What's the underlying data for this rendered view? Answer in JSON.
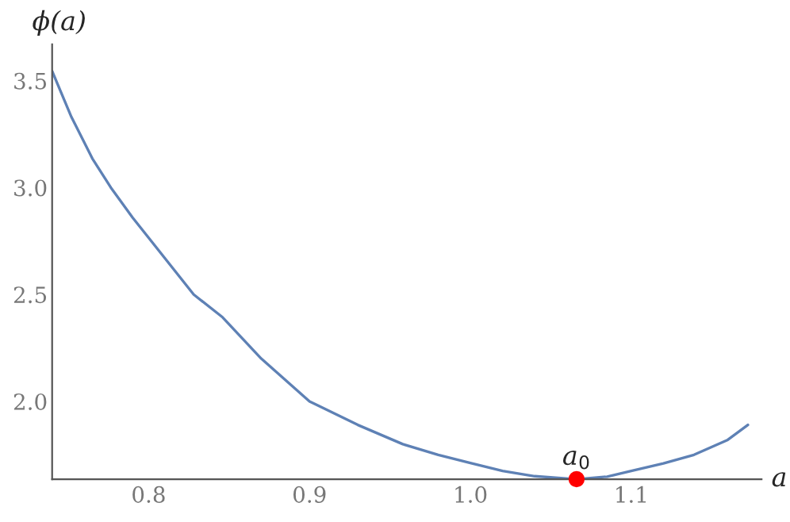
{
  "chart_data": {
    "type": "line",
    "xlabel": "a",
    "ylabel": "ϕ(a)",
    "xlim": [
      0.74,
      1.181
    ],
    "ylim": [
      1.636,
      3.67
    ],
    "xticks": [
      {
        "value": 0.8,
        "label": "0.8"
      },
      {
        "value": 0.9,
        "label": "0.9"
      },
      {
        "value": 1.0,
        "label": "1.0"
      },
      {
        "value": 1.1,
        "label": "1.1"
      }
    ],
    "yticks": [
      {
        "value": 2.0,
        "label": "2.0"
      },
      {
        "value": 2.5,
        "label": "2.5"
      },
      {
        "value": 3.0,
        "label": "3.0"
      },
      {
        "value": 3.5,
        "label": "3.5"
      }
    ],
    "grid": false,
    "legend": false,
    "series": [
      {
        "color": "#5e81b5",
        "x": [
          0.74,
          0.752,
          0.765,
          0.7765,
          0.79,
          0.8,
          0.828,
          0.846,
          0.87,
          0.9,
          0.93,
          0.958,
          0.98,
          1.0,
          1.02,
          1.04,
          1.066,
          1.085,
          1.1,
          1.12,
          1.139,
          1.16,
          1.1725
        ],
        "values": [
          3.545,
          3.33,
          3.136,
          3.0,
          2.86,
          2.765,
          2.5,
          2.393,
          2.2,
          2.0,
          1.89,
          1.8,
          1.75,
          1.712,
          1.675,
          1.65,
          1.636,
          1.648,
          1.675,
          1.71,
          1.75,
          1.82,
          1.89
        ]
      },
      {
        "type": "scatter",
        "color": "#ff0000",
        "x": [
          1.066
        ],
        "values": [
          1.636
        ]
      }
    ],
    "annotations": [
      {
        "text": "a$_{0}$",
        "x": 1.066,
        "y": 1.636
      }
    ]
  }
}
